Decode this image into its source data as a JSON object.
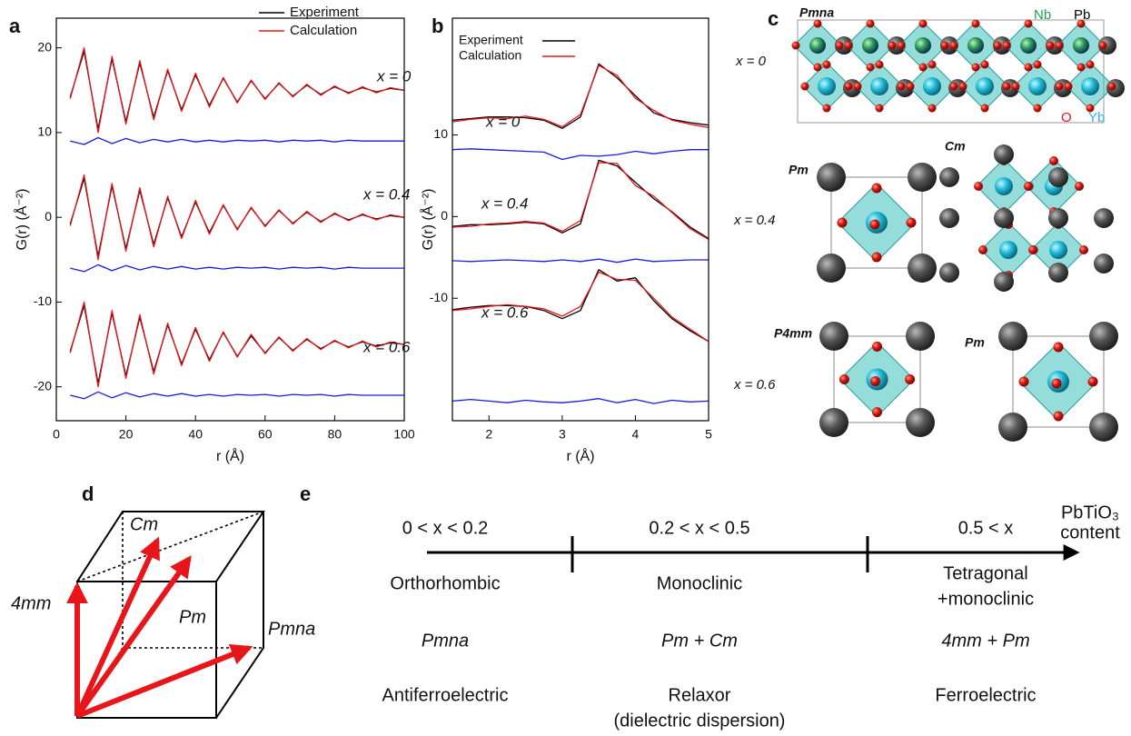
{
  "panel_labels": [
    "a",
    "b",
    "c",
    "d",
    "e"
  ],
  "chart_data": [
    {
      "type": "line",
      "xlabel": "r (Å)",
      "ylabel": "G(r) (Å⁻²)",
      "xlim": [
        0,
        100
      ],
      "xticks": [
        0,
        20,
        40,
        60,
        80,
        100
      ],
      "ylim": [
        -24,
        23.5
      ],
      "yticks": [
        -20,
        -10,
        0,
        10,
        20
      ],
      "x": [
        4,
        8,
        12,
        16,
        20,
        24,
        28,
        32,
        36,
        40,
        44,
        48,
        52,
        56,
        60,
        64,
        68,
        72,
        76,
        80,
        84,
        88,
        92,
        96,
        100
      ],
      "curve_labels": [
        "x = 0",
        "x = 0.4",
        "x = 0.6"
      ],
      "series": [
        {
          "name": "Experiment",
          "color": "#000000",
          "curves": [
            [
              14.2,
              19.6,
              10.4,
              18.7,
              11.3,
              18.2,
              11.8,
              17.3,
              12.7,
              16.8,
              13.2,
              16.4,
              13.6,
              16.1,
              14.0,
              15.8,
              14.3,
              15.6,
              14.5,
              15.4,
              14.7,
              15.3,
              14.8,
              15.2,
              15.0
            ],
            [
              -0.8,
              4.6,
              -4.6,
              3.7,
              -3.7,
              3.2,
              -3.2,
              2.3,
              -2.3,
              1.8,
              -1.8,
              1.4,
              -1.4,
              1.1,
              -1,
              0.8,
              -0.7,
              0.6,
              -0.5,
              0.4,
              -0.3,
              0.3,
              -0.2,
              0.2,
              0
            ],
            [
              -15.8,
              -10.4,
              -19.6,
              -11.3,
              -18.7,
              -11.8,
              -18.2,
              -12.7,
              -17.3,
              -13.2,
              -16.8,
              -13.6,
              -16.4,
              -14,
              -16,
              -14.2,
              -15.7,
              -14.4,
              -15.5,
              -14.6,
              -15.3,
              -14.7,
              -15.2,
              -14.8,
              -15
            ]
          ]
        },
        {
          "name": "Calculation",
          "color": "#e8161b",
          "curves": [
            [
              14,
              20,
              10,
              19,
              11,
              18.5,
              11.5,
              17.5,
              12.5,
              17,
              13,
              16.5,
              13.5,
              16.2,
              13.9,
              15.9,
              14.2,
              15.7,
              14.4,
              15.5,
              14.6,
              15.4,
              14.7,
              15.3,
              15
            ],
            [
              -1,
              5,
              -5,
              4,
              -4,
              3.5,
              -3.5,
              2.5,
              -2.5,
              2,
              -2,
              1.5,
              -1.5,
              1.2,
              -1.1,
              0.9,
              -0.8,
              0.7,
              -0.6,
              0.5,
              -0.4,
              0.4,
              -0.3,
              0.3,
              0
            ],
            [
              -16,
              -10,
              -20,
              -11,
              -19,
              -11.5,
              -18.5,
              -12.5,
              -17.5,
              -13,
              -17,
              -13.5,
              -16.5,
              -13.8,
              -16.1,
              -14.1,
              -15.8,
              -14.3,
              -15.6,
              -14.5,
              -15.4,
              -14.6,
              -15.3,
              -14.7,
              -15
            ]
          ]
        },
        {
          "color": "#1a1adf",
          "curves": [
            [
              9,
              8.6,
              9.4,
              8.7,
              9.3,
              8.8,
              9.2,
              8.9,
              9.2,
              8.9,
              9.1,
              8.9,
              9.1,
              9,
              9.1,
              8.9,
              9.1,
              9,
              9.1,
              8.9,
              9.1,
              9,
              9,
              9,
              9
            ],
            [
              -6,
              -6.4,
              -5.6,
              -6.3,
              -5.7,
              -6.2,
              -5.8,
              -6.1,
              -5.8,
              -6.1,
              -5.9,
              -6.1,
              -5.9,
              -6,
              -5.9,
              -6.1,
              -5.9,
              -6,
              -5.9,
              -6.1,
              -5.9,
              -6,
              -6,
              -6,
              -6
            ],
            [
              -21,
              -21.4,
              -20.6,
              -21.3,
              -20.7,
              -21.2,
              -20.8,
              -21.1,
              -20.8,
              -21.1,
              -20.9,
              -21.1,
              -20.9,
              -21,
              -20.9,
              -21.1,
              -20.9,
              -21,
              -20.9,
              -21.1,
              -20.9,
              -21,
              -21,
              -21,
              -21
            ]
          ]
        }
      ]
    },
    {
      "type": "line",
      "xlabel": "r (Å)",
      "ylabel": "G(r) (Å⁻²)",
      "xlim": [
        1.5,
        5
      ],
      "xticks": [
        2,
        3,
        4,
        5
      ],
      "ylim": [
        -25,
        24.3
      ],
      "yticks": [
        -10,
        0,
        10
      ],
      "x": [
        1.5,
        1.75,
        2,
        2.25,
        2.5,
        2.75,
        3,
        3.25,
        3.5,
        3.75,
        4,
        4.25,
        4.5,
        4.75,
        5
      ],
      "curve_labels": [
        "x = 0",
        "x = 0.4",
        "x = 0.6"
      ],
      "series": [
        {
          "name": "Experiment",
          "color": "#000000",
          "curves": [
            [
              11.8,
              12.0,
              12.2,
              12.2,
              12.1,
              11.8,
              10.8,
              12.2,
              18.7,
              17.0,
              14.8,
              12.7,
              11.9,
              11.5,
              11.2
            ],
            [
              -1.2,
              -1.0,
              -1.0,
              -0.9,
              -0.7,
              -0.9,
              -2.0,
              -0.9,
              6.9,
              6.2,
              4.2,
              2.2,
              0.6,
              -1.3,
              -2.7
            ],
            [
              -11.4,
              -11.1,
              -10.9,
              -10.9,
              -11.0,
              -11.5,
              -12.5,
              -11.5,
              -6.5,
              -7.9,
              -7.5,
              -10.3,
              -12.5,
              -14.0,
              -15.3
            ]
          ]
        },
        {
          "name": "Calculation",
          "color": "#e8161b",
          "curves": [
            [
              11.6,
              11.9,
              12.1,
              12.0,
              12.3,
              11.9,
              11.0,
              12.5,
              18.5,
              17.3,
              14.5,
              13.0,
              11.8,
              11.3,
              10.9
            ],
            [
              -1.3,
              -1.2,
              -0.9,
              -0.8,
              -0.6,
              -0.8,
              -1.8,
              -0.5,
              6.6,
              6.5,
              3.8,
              2.5,
              0.5,
              -1.5,
              -2.8
            ],
            [
              -11.5,
              -11.3,
              -11.0,
              -10.8,
              -11.0,
              -11.3,
              -12.2,
              -11.0,
              -6.8,
              -7.7,
              -7.8,
              -10.0,
              -12.3,
              -13.8,
              -15.3
            ]
          ]
        },
        {
          "color": "#1a1adf",
          "curves": [
            [
              8.2,
              8.3,
              8.2,
              8.1,
              8.0,
              7.9,
              7.0,
              7.5,
              7.4,
              7.6,
              8.0,
              7.7,
              8.0,
              8.2,
              8.2
            ],
            [
              -5.4,
              -5.5,
              -5.4,
              -5.3,
              -5.4,
              -5.5,
              -5.3,
              -5.5,
              -5.2,
              -5.6,
              -5.2,
              -5.5,
              -5.4,
              -5.3,
              -5.3
            ],
            [
              -22.6,
              -22.4,
              -22.6,
              -22.8,
              -22.5,
              -22.7,
              -22.8,
              -22.6,
              -22.3,
              -22.8,
              -22.4,
              -22.9,
              -22.5,
              -22.7,
              -22.6
            ]
          ]
        }
      ]
    }
  ],
  "structures": {
    "compositions": [
      "x = 0",
      "x = 0.4",
      "x = 0.6"
    ],
    "space_groups": [
      "Pmna",
      "Pm",
      "Cm",
      "P4mm",
      "Pm"
    ],
    "elements": [
      "Nb",
      "Pb",
      "O",
      "Yb"
    ]
  },
  "cube_labels": [
    "Cm",
    "Pm",
    "4mm",
    "Pmna"
  ],
  "phase_diagram": {
    "axis_label": [
      "PbTiO₃",
      "content"
    ],
    "columns": [
      {
        "range": "0 <  x <  0.2",
        "phase": [
          "Orthorhombic"
        ],
        "symmetry": "Pmna",
        "property": [
          "Antiferroelectric"
        ]
      },
      {
        "range": "0.2 <  x <  0.5",
        "phase": [
          "Monoclinic"
        ],
        "symmetry": "Pm + Cm",
        "property": [
          "Relaxor",
          "(dielectric dispersion)"
        ]
      },
      {
        "range": "0.5 <  x",
        "phase": [
          "Tetragonal",
          "+monoclinic"
        ],
        "symmetry": "4mm + Pm",
        "property": [
          "Ferroelectric"
        ]
      }
    ]
  }
}
